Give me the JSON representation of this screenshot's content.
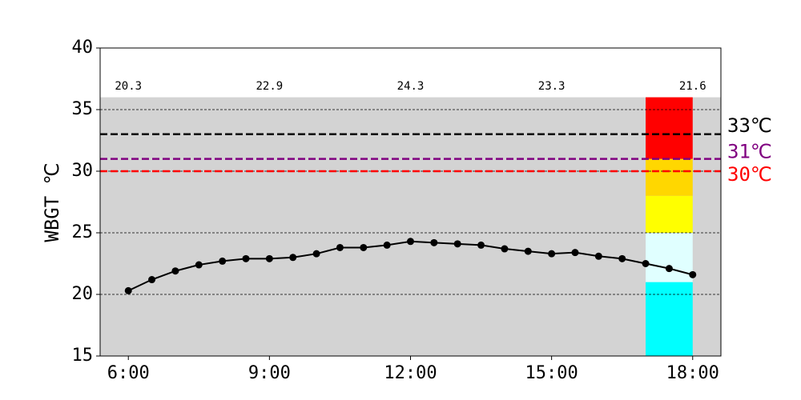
{
  "chart_data": {
    "type": "line",
    "y_label": "WBGT ℃",
    "x": [
      6,
      6.5,
      7,
      7.5,
      8,
      8.5,
      9,
      9.5,
      10,
      10.5,
      11,
      11.5,
      12,
      12.5,
      13,
      13.5,
      14,
      14.5,
      15,
      15.5,
      16,
      16.5,
      17,
      17.5,
      18
    ],
    "values": [
      20.3,
      21.2,
      21.9,
      22.4,
      22.7,
      22.9,
      22.9,
      23.0,
      23.3,
      23.8,
      23.8,
      24.0,
      24.3,
      24.2,
      24.1,
      24.0,
      23.7,
      23.5,
      23.3,
      23.4,
      23.1,
      22.9,
      22.5,
      22.1,
      21.6
    ],
    "color": "#000000",
    "xlim": [
      5.4,
      18.6
    ],
    "xticks": [
      {
        "value": 6,
        "label": "6:00"
      },
      {
        "value": 9,
        "label": "9:00"
      },
      {
        "value": 12,
        "label": "12:00"
      },
      {
        "value": 15,
        "label": "15:00"
      },
      {
        "value": 18,
        "label": "18:00"
      }
    ],
    "ylim": [
      15,
      40
    ],
    "yticks": [
      15,
      20,
      25,
      30,
      35,
      40
    ],
    "grid_lines": [
      20,
      25,
      30,
      35
    ],
    "shade": {
      "from": 15,
      "to": 36,
      "color": "#d3d3d3"
    },
    "band_x": [
      17,
      18
    ],
    "bands": [
      {
        "from": 15,
        "to": 21,
        "color": "#00ffff"
      },
      {
        "from": 21,
        "to": 25,
        "color": "#e0ffff"
      },
      {
        "from": 25,
        "to": 28,
        "color": "#ffff00"
      },
      {
        "from": 28,
        "to": 31,
        "color": "#ffd700"
      },
      {
        "from": 31,
        "to": 36,
        "color": "#ff0000"
      }
    ],
    "thresholds": [
      {
        "value": 33,
        "label": "33℃",
        "color": "#000000"
      },
      {
        "value": 31,
        "label": "31℃",
        "color": "#800080"
      },
      {
        "value": 30,
        "label": "30℃",
        "color": "#ff0000"
      }
    ]
  }
}
